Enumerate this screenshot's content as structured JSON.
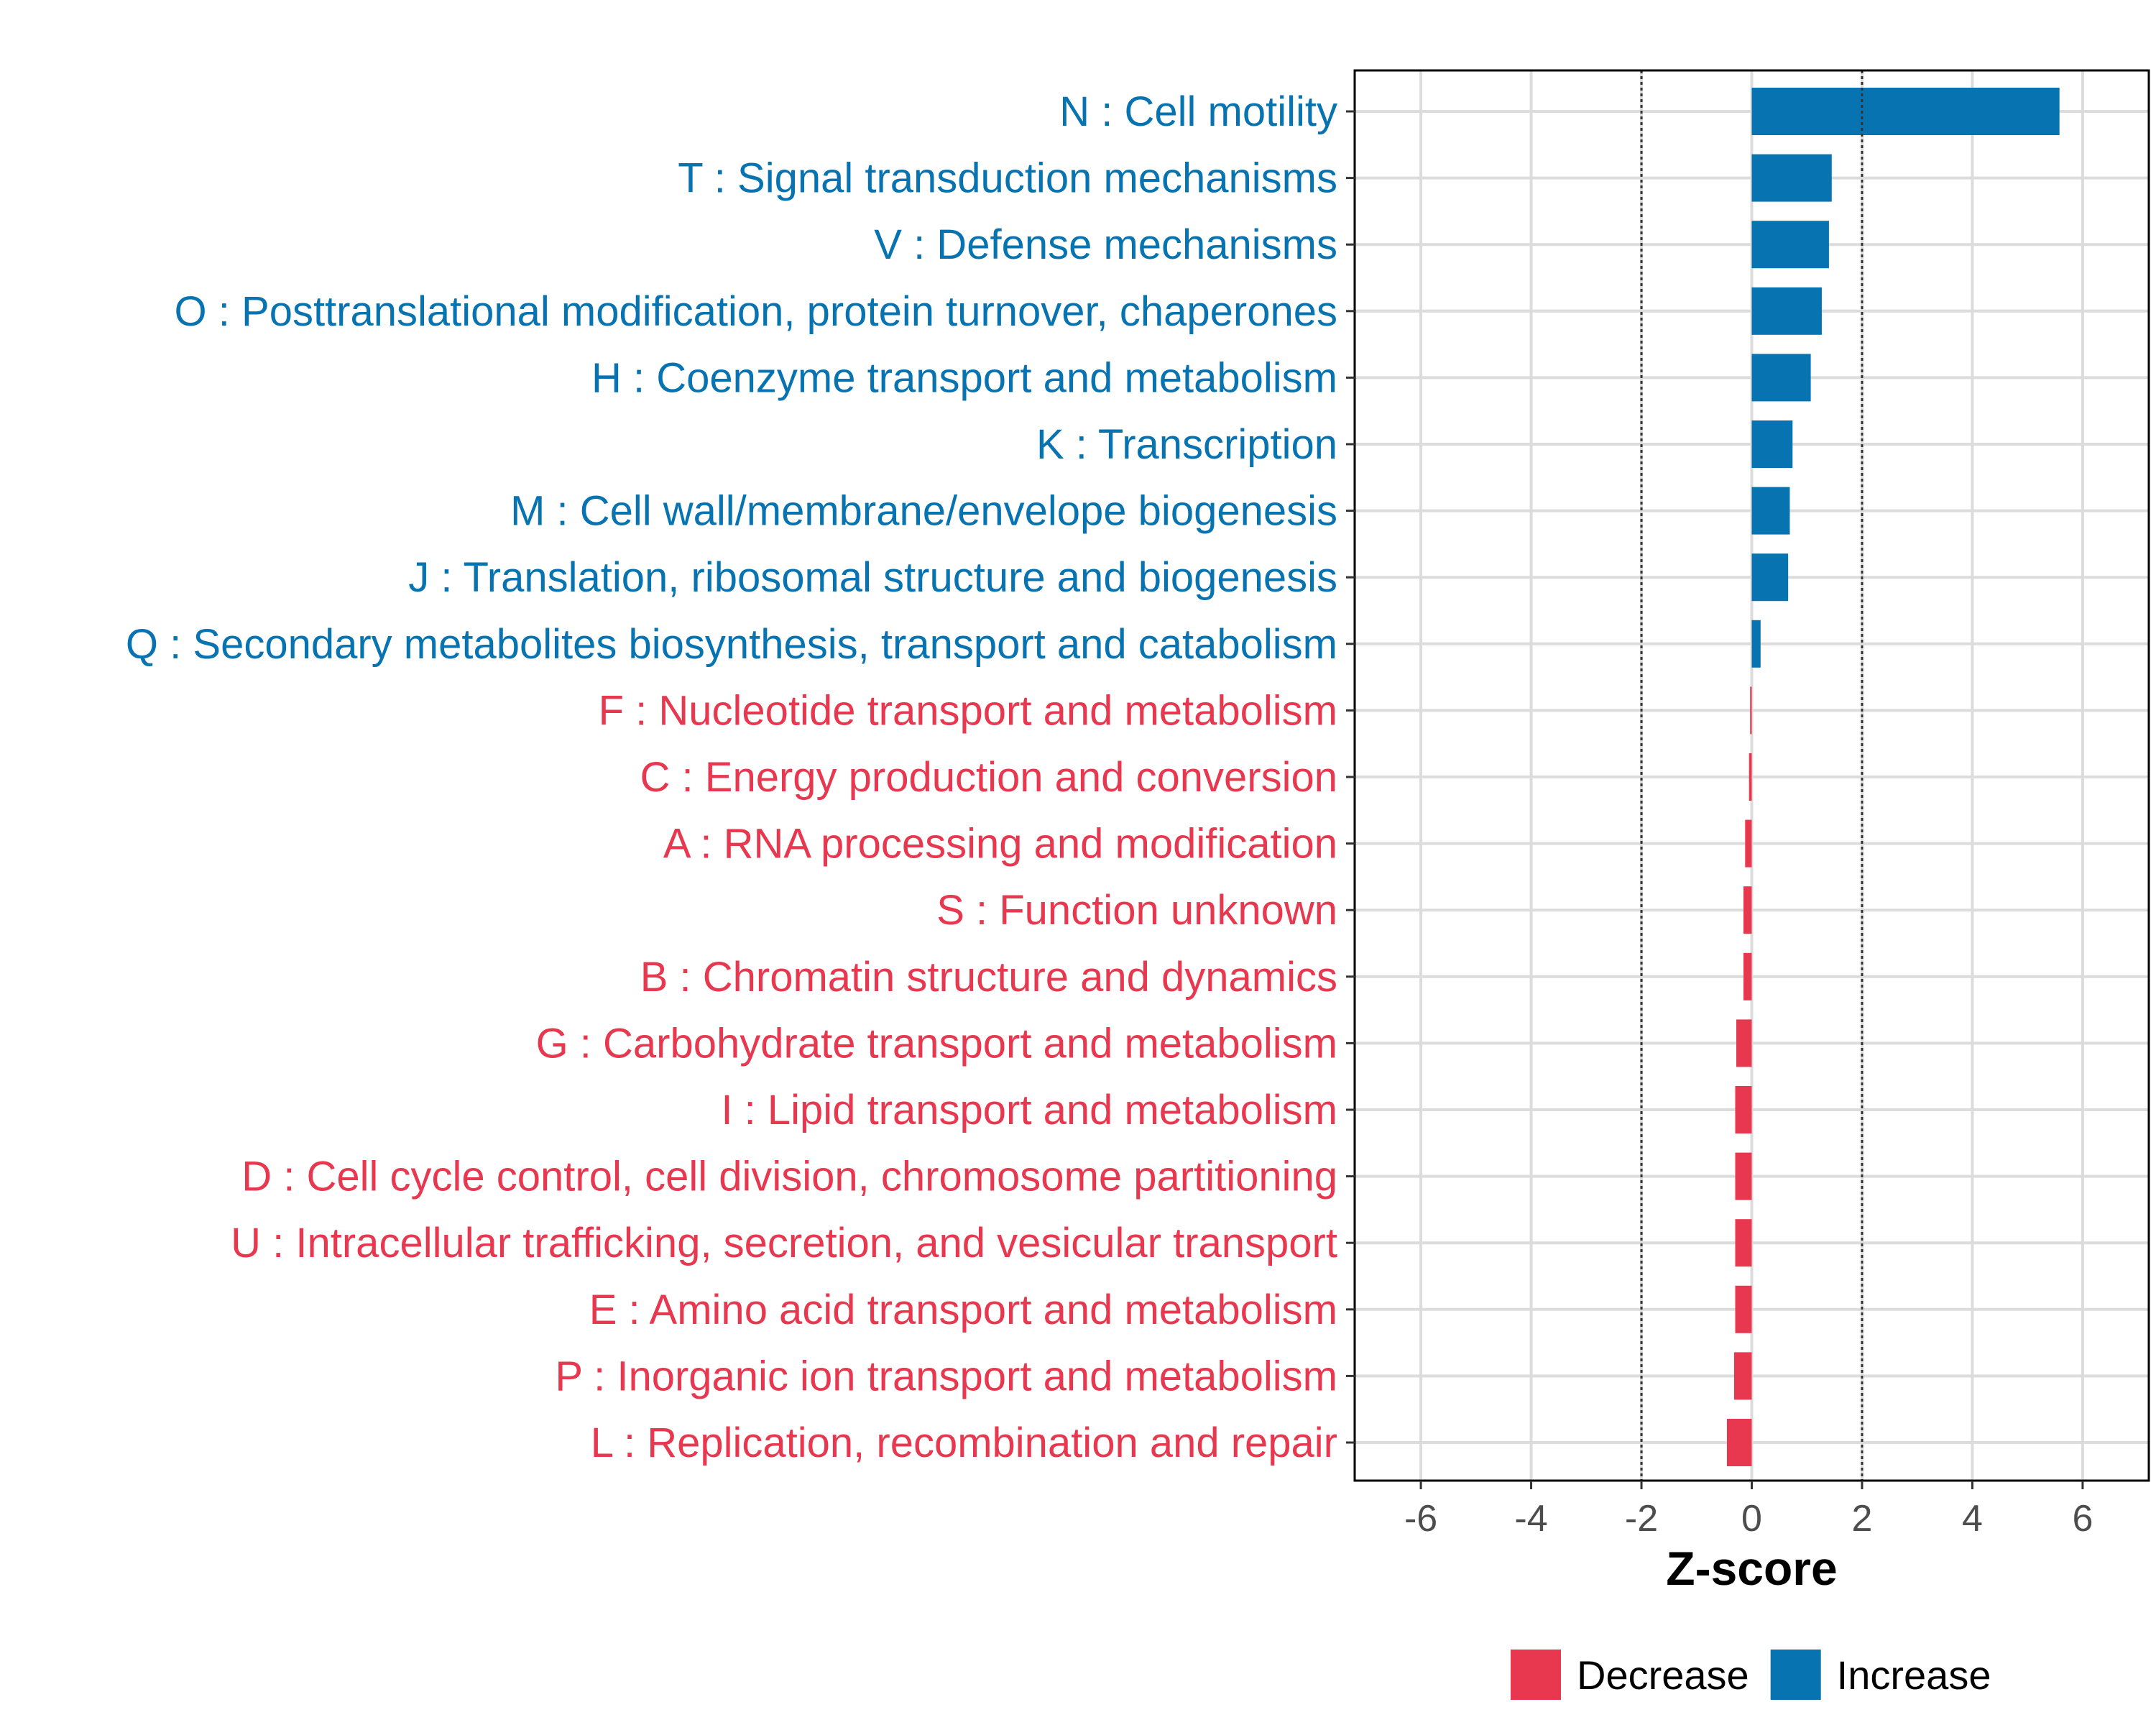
{
  "chart_data": {
    "type": "bar",
    "orientation": "horizontal",
    "title": "",
    "xlabel": "Z-score",
    "ylabel": "",
    "xlim": [
      -7.2,
      7.2
    ],
    "xticks": [
      -6,
      -4,
      -2,
      0,
      2,
      4,
      6
    ],
    "reference_lines": [
      -2,
      2
    ],
    "grid": true,
    "legend_position": "bottom",
    "legend": [
      {
        "name": "Decrease",
        "color": "#E8384F"
      },
      {
        "name": "Increase",
        "color": "#0873B1"
      }
    ],
    "categories": [
      {
        "label": "N : Cell motility",
        "value": 5.58,
        "group": "Increase"
      },
      {
        "label": "T : Signal transduction mechanisms",
        "value": 1.45,
        "group": "Increase"
      },
      {
        "label": "V : Defense mechanisms",
        "value": 1.4,
        "group": "Increase"
      },
      {
        "label": "O : Posttranslational modification, protein turnover, chaperones",
        "value": 1.27,
        "group": "Increase"
      },
      {
        "label": "H : Coenzyme transport and metabolism",
        "value": 1.07,
        "group": "Increase"
      },
      {
        "label": "K : Transcription",
        "value": 0.74,
        "group": "Increase"
      },
      {
        "label": "M : Cell wall/membrane/envelope biogenesis",
        "value": 0.69,
        "group": "Increase"
      },
      {
        "label": "J : Translation, ribosomal structure and biogenesis",
        "value": 0.66,
        "group": "Increase"
      },
      {
        "label": "Q : Secondary metabolites biosynthesis, transport and catabolism",
        "value": 0.16,
        "group": "Increase"
      },
      {
        "label": "F : Nucleotide transport and metabolism",
        "value": -0.03,
        "group": "Decrease"
      },
      {
        "label": "C : Energy production and conversion",
        "value": -0.05,
        "group": "Decrease"
      },
      {
        "label": "A : RNA processing and modification",
        "value": -0.12,
        "group": "Decrease"
      },
      {
        "label": "S : Function unknown",
        "value": -0.15,
        "group": "Decrease"
      },
      {
        "label": "B : Chromatin structure and dynamics",
        "value": -0.15,
        "group": "Decrease"
      },
      {
        "label": "G : Carbohydrate transport and metabolism",
        "value": -0.28,
        "group": "Decrease"
      },
      {
        "label": "I : Lipid transport and metabolism",
        "value": -0.3,
        "group": "Decrease"
      },
      {
        "label": "D : Cell cycle control, cell division, chromosome partitioning",
        "value": -0.3,
        "group": "Decrease"
      },
      {
        "label": "U : Intracellular trafficking, secretion, and vesicular transport",
        "value": -0.3,
        "group": "Decrease"
      },
      {
        "label": "E : Amino acid transport and metabolism",
        "value": -0.3,
        "group": "Decrease"
      },
      {
        "label": "P : Inorganic ion transport and metabolism",
        "value": -0.32,
        "group": "Decrease"
      },
      {
        "label": "L : Replication, recombination and repair",
        "value": -0.45,
        "group": "Decrease"
      }
    ]
  }
}
